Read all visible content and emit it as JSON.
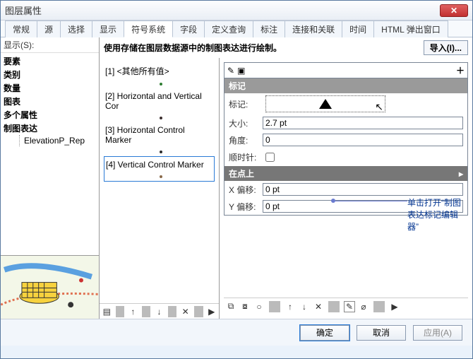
{
  "window": {
    "title": "图层属性"
  },
  "tabs": {
    "items": [
      "常规",
      "源",
      "选择",
      "显示",
      "符号系统",
      "字段",
      "定义查询",
      "标注",
      "连接和关联",
      "时间",
      "HTML 弹出窗口"
    ],
    "active_index": 4
  },
  "left": {
    "label": "显示(S):",
    "tree": [
      "要素",
      "类别",
      "数量",
      "图表",
      "多个属性",
      "制图表达"
    ],
    "tree_child": "ElevationP_Rep"
  },
  "mid": {
    "header": "使用存储在图层数据源中的制图表达进行绘制。",
    "import_btn": "导入(I)...",
    "items": [
      {
        "label": "[1] <其他所有值>",
        "dot_color": "#2e7d32"
      },
      {
        "label": "[2] Horizontal and Vertical Cor",
        "dot_color": "#3b2e2e"
      },
      {
        "label": "[3] Horizontal Control Marker",
        "dot_color": "#2c2c2c"
      },
      {
        "label": "[4] Vertical Control Marker",
        "dot_color": "#8a6a4a"
      }
    ],
    "selected_index": 3,
    "toolbar_icons": [
      "layers-icon",
      "arrow-up-icon",
      "arrow-down-icon",
      "delete-icon",
      "play-icon"
    ]
  },
  "right": {
    "section1": "标记",
    "rows": {
      "marker_label": "标记:",
      "size_label": "大小:",
      "size_value": "2.7 pt",
      "angle_label": "角度:",
      "angle_value": "0",
      "cw_label": "顺时针:"
    },
    "section2": "在点上",
    "rows2": {
      "xoff_label": "X 偏移:",
      "xoff_value": "0 pt",
      "yoff_label": "Y 偏移:",
      "yoff_value": "0 pt"
    },
    "bottom_tools": [
      "link-a-icon",
      "link-b-icon",
      "oval-icon",
      "sep",
      "arrow-up-icon",
      "arrow-down-icon",
      "delete-icon",
      "sep",
      "pencil-icon",
      "cylinder-icon",
      "sep",
      "play-icon"
    ]
  },
  "annotation": "单击打开“制图表达标记编辑器”",
  "buttons": {
    "ok": "确定",
    "cancel": "取消",
    "apply": "应用(A)"
  }
}
